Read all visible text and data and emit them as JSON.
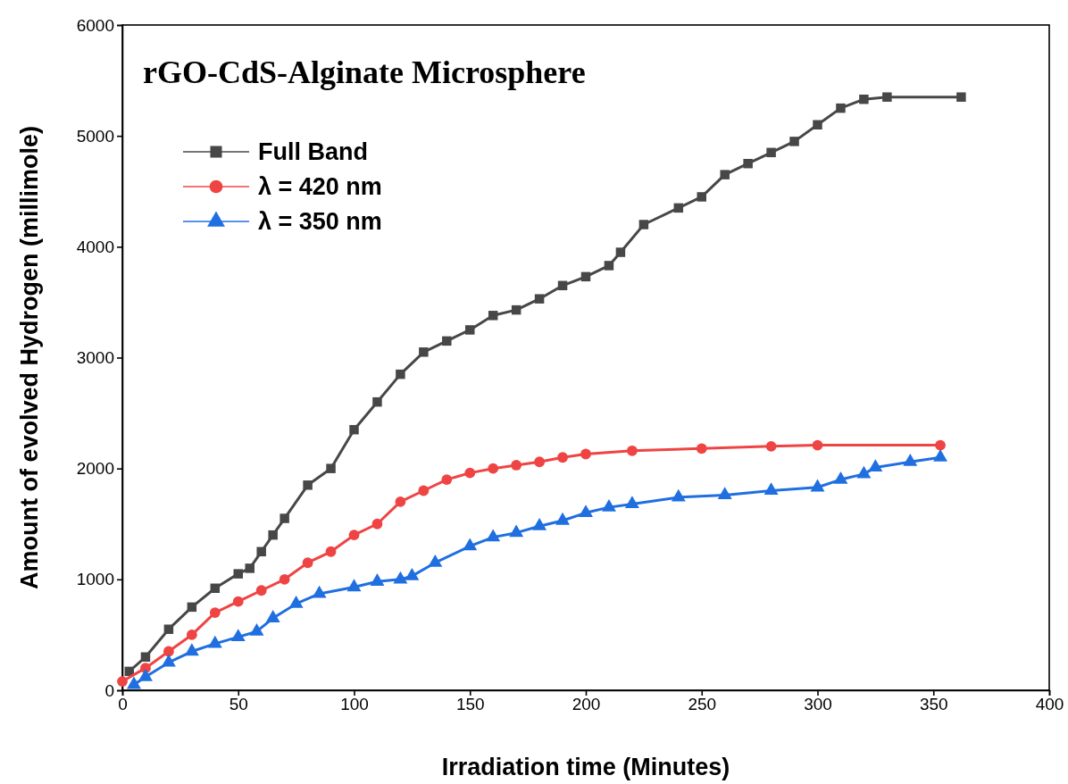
{
  "chart_data": {
    "type": "line",
    "title": "rGO-CdS-Alginate Microsphere",
    "xlabel": "Irradiation time (Minutes)",
    "ylabel": "Amount of evolved Hydrogen (millimole)",
    "xlim": [
      0,
      400
    ],
    "xticks": [
      0,
      50,
      100,
      150,
      200,
      250,
      300,
      350,
      400
    ],
    "ylim": [
      0,
      6000
    ],
    "yticks": [
      0,
      1000,
      2000,
      3000,
      4000,
      5000,
      6000
    ],
    "legend": "top left",
    "grid": false,
    "series": [
      {
        "name": "Full Band",
        "color": "#474747",
        "marker": "square",
        "x": [
          3,
          10,
          20,
          30,
          40,
          50,
          55,
          60,
          65,
          70,
          80,
          90,
          100,
          110,
          120,
          130,
          140,
          150,
          160,
          170,
          180,
          190,
          200,
          210,
          215,
          225,
          240,
          250,
          260,
          270,
          280,
          290,
          300,
          310,
          320,
          330,
          362
        ],
        "values": [
          170,
          300,
          550,
          750,
          920,
          1050,
          1100,
          1250,
          1400,
          1550,
          1850,
          2000,
          2350,
          2600,
          2850,
          3050,
          3150,
          3250,
          3380,
          3430,
          3530,
          3650,
          3730,
          3830,
          3950,
          4200,
          4350,
          4450,
          4650,
          4750,
          4850,
          4950,
          5100,
          5250,
          5330,
          5350,
          5350
        ]
      },
      {
        "name": "λ = 420 nm",
        "color": "#ef4444",
        "marker": "circle",
        "x": [
          0,
          10,
          20,
          30,
          40,
          50,
          60,
          70,
          80,
          90,
          100,
          110,
          120,
          130,
          140,
          150,
          160,
          170,
          180,
          190,
          200,
          220,
          250,
          280,
          300,
          353
        ],
        "values": [
          80,
          200,
          350,
          500,
          700,
          800,
          900,
          1000,
          1150,
          1250,
          1400,
          1500,
          1700,
          1800,
          1900,
          1960,
          2000,
          2030,
          2060,
          2100,
          2130,
          2160,
          2180,
          2200,
          2210,
          2210
        ]
      },
      {
        "name": "λ = 350 nm",
        "color": "#1f6fe0",
        "marker": "triangle",
        "x": [
          5,
          10,
          20,
          30,
          40,
          50,
          58,
          65,
          75,
          85,
          100,
          110,
          120,
          125,
          135,
          150,
          160,
          170,
          180,
          190,
          200,
          210,
          220,
          240,
          260,
          280,
          300,
          310,
          320,
          325,
          340,
          353
        ],
        "values": [
          50,
          120,
          250,
          350,
          420,
          480,
          530,
          650,
          780,
          870,
          930,
          980,
          1000,
          1030,
          1150,
          1300,
          1380,
          1420,
          1480,
          1530,
          1600,
          1650,
          1680,
          1740,
          1760,
          1800,
          1830,
          1900,
          1950,
          2010,
          2060,
          2100
        ]
      }
    ]
  }
}
